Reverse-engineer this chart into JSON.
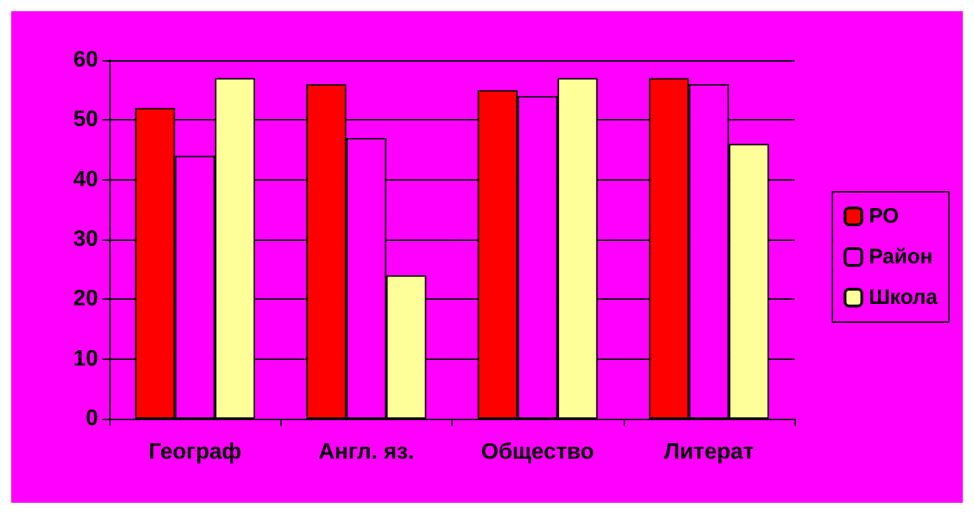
{
  "chart_data": {
    "type": "bar",
    "categories": [
      "Географ",
      "Англ. яз.",
      "Общество",
      "Литерат"
    ],
    "series": [
      {
        "name": "РО",
        "color": "#ff0000",
        "values": [
          52,
          56,
          55,
          57
        ]
      },
      {
        "name": "Район",
        "color": "#ff00ff",
        "values": [
          44,
          47,
          54,
          56
        ]
      },
      {
        "name": "Школа",
        "color": "#ffff99",
        "values": [
          57,
          24,
          57,
          46
        ]
      }
    ],
    "ylim": [
      0,
      60
    ],
    "yticks": [
      0,
      10,
      20,
      30,
      40,
      50,
      60
    ],
    "grid": "y",
    "legend": "right"
  }
}
